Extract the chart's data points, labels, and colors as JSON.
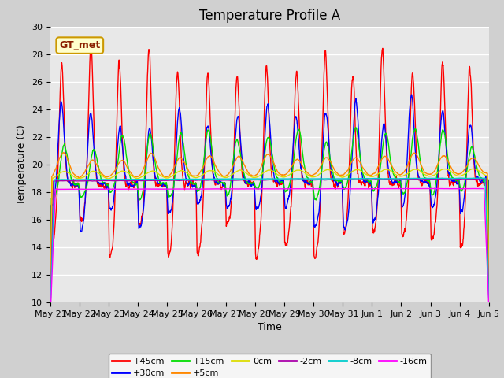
{
  "title": "Temperature Profile A",
  "xlabel": "Time",
  "ylabel": "Temperature (C)",
  "ylim": [
    10,
    30
  ],
  "yticks": [
    10,
    12,
    14,
    16,
    18,
    20,
    22,
    24,
    26,
    28,
    30
  ],
  "x_tick_labels": [
    "May 21",
    "May 22",
    "May 23",
    "May 24",
    "May 25",
    "May 26",
    "May 27",
    "May 28",
    "May 29",
    "May 30",
    "May 31",
    "Jun 1",
    "Jun 2",
    "Jun 3",
    "Jun 4",
    "Jun 5"
  ],
  "series": [
    {
      "label": "+45cm",
      "color": "#ff0000",
      "lw": 1.0
    },
    {
      "label": "+30cm",
      "color": "#0000ff",
      "lw": 1.0
    },
    {
      "label": "+15cm",
      "color": "#00dd00",
      "lw": 1.0
    },
    {
      "label": "+5cm",
      "color": "#ff8800",
      "lw": 1.0
    },
    {
      "label": "0cm",
      "color": "#dddd00",
      "lw": 1.0
    },
    {
      "label": "-2cm",
      "color": "#aa00aa",
      "lw": 1.0
    },
    {
      "label": "-8cm",
      "color": "#00cccc",
      "lw": 1.0
    },
    {
      "label": "-16cm",
      "color": "#ff00ff",
      "lw": 1.0
    }
  ],
  "annotation_text": "GT_met",
  "plot_bg_color": "#e8e8e8",
  "fig_bg_color": "#d0d0d0",
  "title_fontsize": 12,
  "axis_label_fontsize": 9,
  "tick_fontsize": 8
}
